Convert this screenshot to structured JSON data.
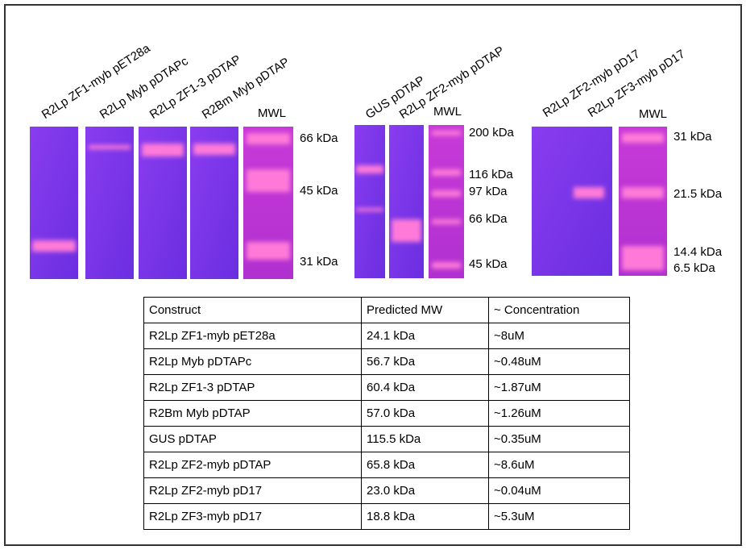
{
  "gels": [
    {
      "lanes": [
        "R2Lp ZF1-myb pET28a",
        "R2Lp Myb pDTAPc",
        "R2Lp ZF1-3 pDTAP",
        "R2Bm Myb pDTAP"
      ],
      "ladder": "MWL",
      "markers": [
        "66 kDa",
        "45 kDa",
        "31 kDa"
      ]
    },
    {
      "lanes": [
        "GUS pDTAP",
        "R2Lp ZF2-myb pDTAP"
      ],
      "ladder": "MWL",
      "markers": [
        "200 kDa",
        "116 kDa",
        "97 kDa",
        "66 kDa",
        "45 kDa"
      ]
    },
    {
      "lanes": [
        "R2Lp ZF2-myb pD17",
        "R2Lp ZF3-myb pD17"
      ],
      "ladder": "MWL",
      "markers": [
        "31 kDa",
        "21.5 kDa",
        "14.4 kDa",
        "6.5 kDa"
      ]
    }
  ],
  "table": {
    "header": [
      "Construct",
      "Predicted MW",
      "~ Concentration"
    ],
    "rows": [
      [
        "R2Lp ZF1-myb pET28a",
        "24.1 kDa",
        "~8uM"
      ],
      [
        "R2Lp Myb pDTAPc",
        "56.7 kDa",
        "~0.48uM"
      ],
      [
        "R2Lp ZF1-3 pDTAP",
        "60.4 kDa",
        "~1.87uM"
      ],
      [
        "R2Bm Myb pDTAP",
        "57.0 kDa",
        "~1.26uM"
      ],
      [
        "GUS pDTAP",
        "115.5 kDa",
        "~0.35uM"
      ],
      [
        "R2Lp ZF2-myb pDTAP",
        "65.8 kDa",
        "~8.6uM"
      ],
      [
        "R2Lp ZF2-myb pD17",
        "23.0 kDa",
        "~0.04uM"
      ],
      [
        "R2Lp ZF3-myb pD17",
        "18.8 kDa",
        "~5.3uM"
      ]
    ]
  }
}
